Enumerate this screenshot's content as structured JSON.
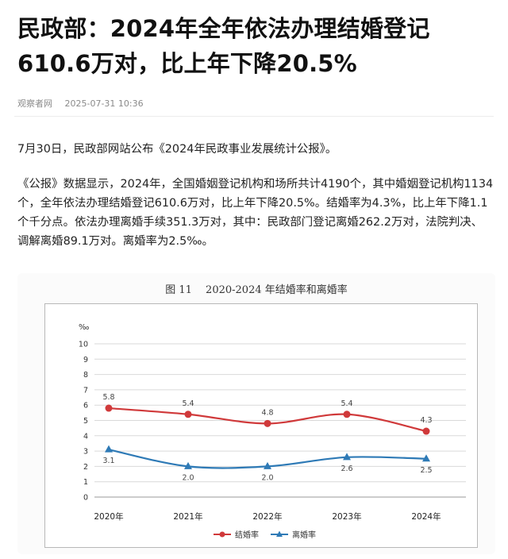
{
  "article": {
    "title": "民政部：2024年全年依法办理结婚登记610.6万对，比上年下降20.5%",
    "source": "观察者网",
    "date": "2025-07-31 10:36",
    "paragraph1": "7月30日，民政部网站公布《2024年民政事业发展统计公报》。",
    "paragraph2": "《公报》数据显示，2024年，全国婚姻登记机构和场所共计4190个，其中婚姻登记机构1134个，全年依法办理结婚登记610.6万对，比上年下降20.5%。结婚率为4.3%，比上年下降1.1个千分点。依法办理离婚手续351.3万对，其中：民政部门登记离婚262.2万对，法院判决、调解离婚89.1万对。离婚率为2.5‰。"
  },
  "figure": {
    "caption": "图 11　 2020-2024 年结婚率和离婚率"
  },
  "chart_data": {
    "type": "line",
    "title": "图 11　 2020-2024 年结婚率和离婚率",
    "ylabel": "‰",
    "xlabel": "",
    "categories": [
      "2020年",
      "2021年",
      "2022年",
      "2023年",
      "2024年"
    ],
    "ylim": [
      0,
      10
    ],
    "yticks": [
      0,
      1,
      2,
      3,
      4,
      5,
      6,
      7,
      8,
      9,
      10
    ],
    "grid": true,
    "legend_position": "bottom",
    "series": [
      {
        "name": "结婚率",
        "values": [
          5.8,
          5.4,
          4.8,
          5.4,
          4.3
        ],
        "labels": [
          "5.8",
          "5.4",
          "4.8",
          "5.4",
          "4.3"
        ],
        "color": "#d0393a",
        "marker": "circle",
        "label_side": "above"
      },
      {
        "name": "离婚率",
        "values": [
          3.1,
          2.0,
          2.0,
          2.6,
          2.5
        ],
        "labels": [
          "3.1",
          "2.0",
          "2.0",
          "2.6",
          "2.5"
        ],
        "color": "#2e7ab6",
        "marker": "triangle",
        "label_side": "below"
      }
    ]
  }
}
